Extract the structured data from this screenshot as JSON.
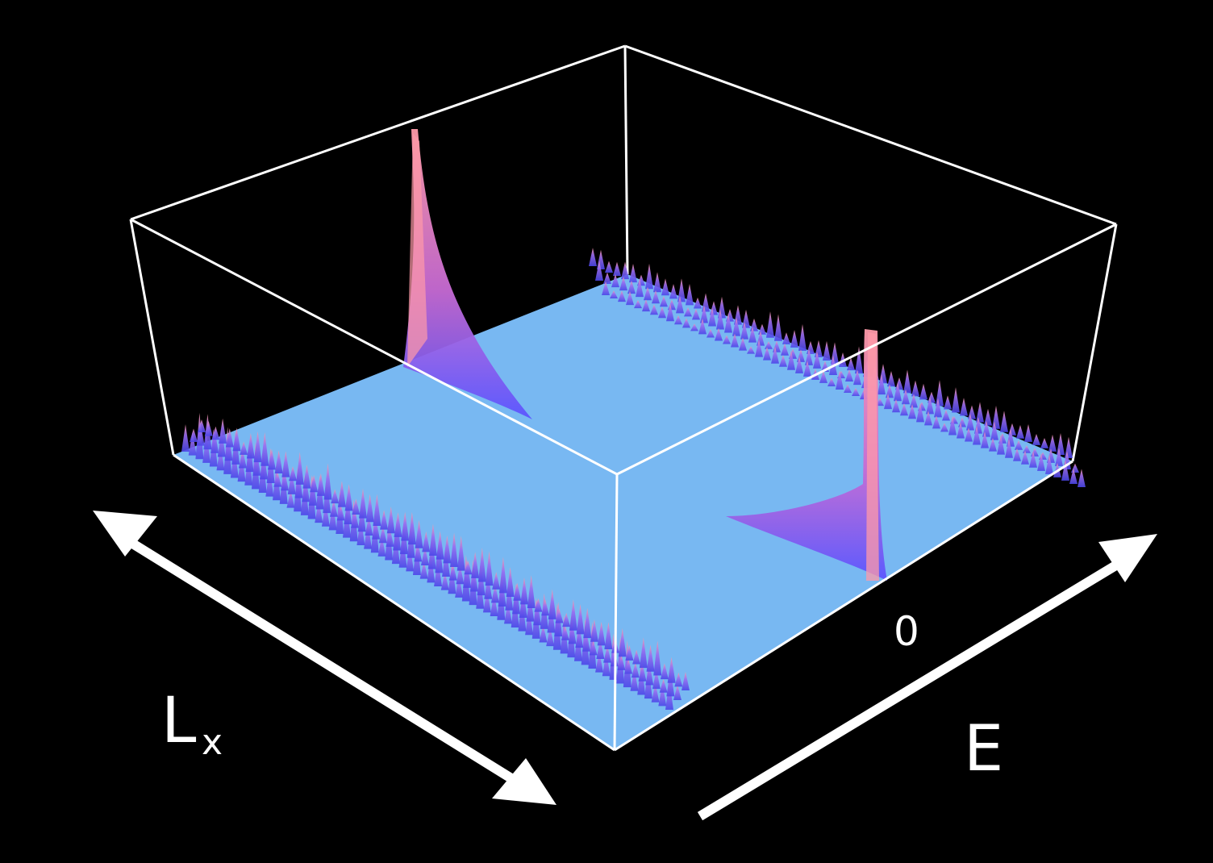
{
  "colors": {
    "background": "#000000",
    "box_edge": "#ffffff",
    "floor": "#78b8f2",
    "peak_low": "#5a55ff",
    "peak_mid": "#c86bd4",
    "peak_high": "#ff9aa8"
  },
  "chart_data": {
    "type": "surface-3d",
    "xlabel_main": "L",
    "xlabel_sub": "x",
    "ylabel": "E",
    "e_tick_labels": [
      "0"
    ],
    "description_series": [
      {
        "name": "",
        "kind": "edge-states",
        "edge": "front-left",
        "values": [
          0.25,
          0.35,
          0.3,
          0.28,
          0.33,
          0.3,
          0.27,
          0.31,
          0.29,
          0.26
        ]
      },
      {
        "name": "",
        "kind": "edge-states",
        "edge": "back-right",
        "values": [
          0.08,
          0.1,
          0.09,
          0.11,
          0.1,
          0.09,
          0.1,
          0.08,
          0.09,
          0.1
        ]
      },
      {
        "name": "",
        "kind": "zero-mode-peak",
        "position": "left",
        "peak": 1.0
      },
      {
        "name": "",
        "kind": "zero-mode-peak",
        "position": "right",
        "peak": 0.75
      }
    ]
  }
}
